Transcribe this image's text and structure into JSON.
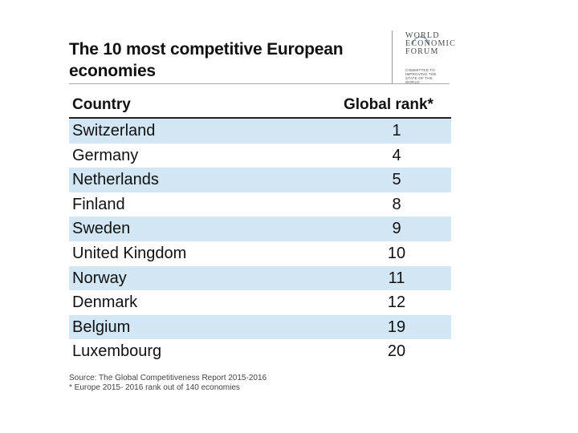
{
  "chart_data": {
    "type": "table",
    "title": "The 10 most competitive European economies",
    "columns": [
      "Country",
      "Global rank*"
    ],
    "rows": [
      {
        "country": "Switzerland",
        "rank": 1
      },
      {
        "country": "Germany",
        "rank": 4
      },
      {
        "country": "Netherlands",
        "rank": 5
      },
      {
        "country": "Finland",
        "rank": 8
      },
      {
        "country": "Sweden",
        "rank": 9
      },
      {
        "country": "United Kingdom",
        "rank": 10
      },
      {
        "country": "Norway",
        "rank": 11
      },
      {
        "country": "Denmark",
        "rank": 12
      },
      {
        "country": "Belgium",
        "rank": 19
      },
      {
        "country": "Luxembourg",
        "rank": 20
      }
    ],
    "source": "Source: The Global Competitiveness Report 2015-2016",
    "footnote": "* Europe 2015- 2016 rank out of 140 economies"
  },
  "logo": {
    "line1": "WORLD",
    "line2": "ECONOMIC",
    "line3": "FORUM",
    "tagline": "COMMITTED TO IMPROVING THE STATE OF THE WORLD"
  },
  "colors": {
    "row_stripe": "#d3e6f4",
    "header_rule": "#222222"
  }
}
